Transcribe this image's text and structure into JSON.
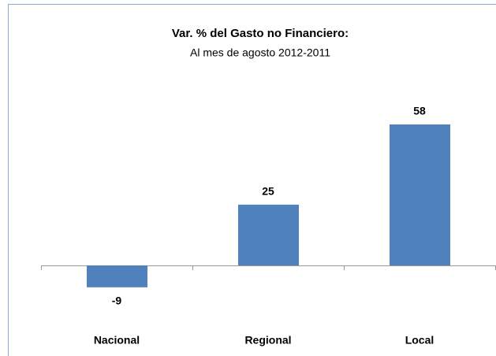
{
  "chart_data": {
    "type": "bar",
    "title": "Var. % del Gasto no Financiero:",
    "subtitle": "Al mes de agosto 2012-2011",
    "categories": [
      "Nacional",
      "Regional",
      "Local"
    ],
    "values": [
      -9,
      25,
      58
    ],
    "color": "#4f81bd"
  }
}
